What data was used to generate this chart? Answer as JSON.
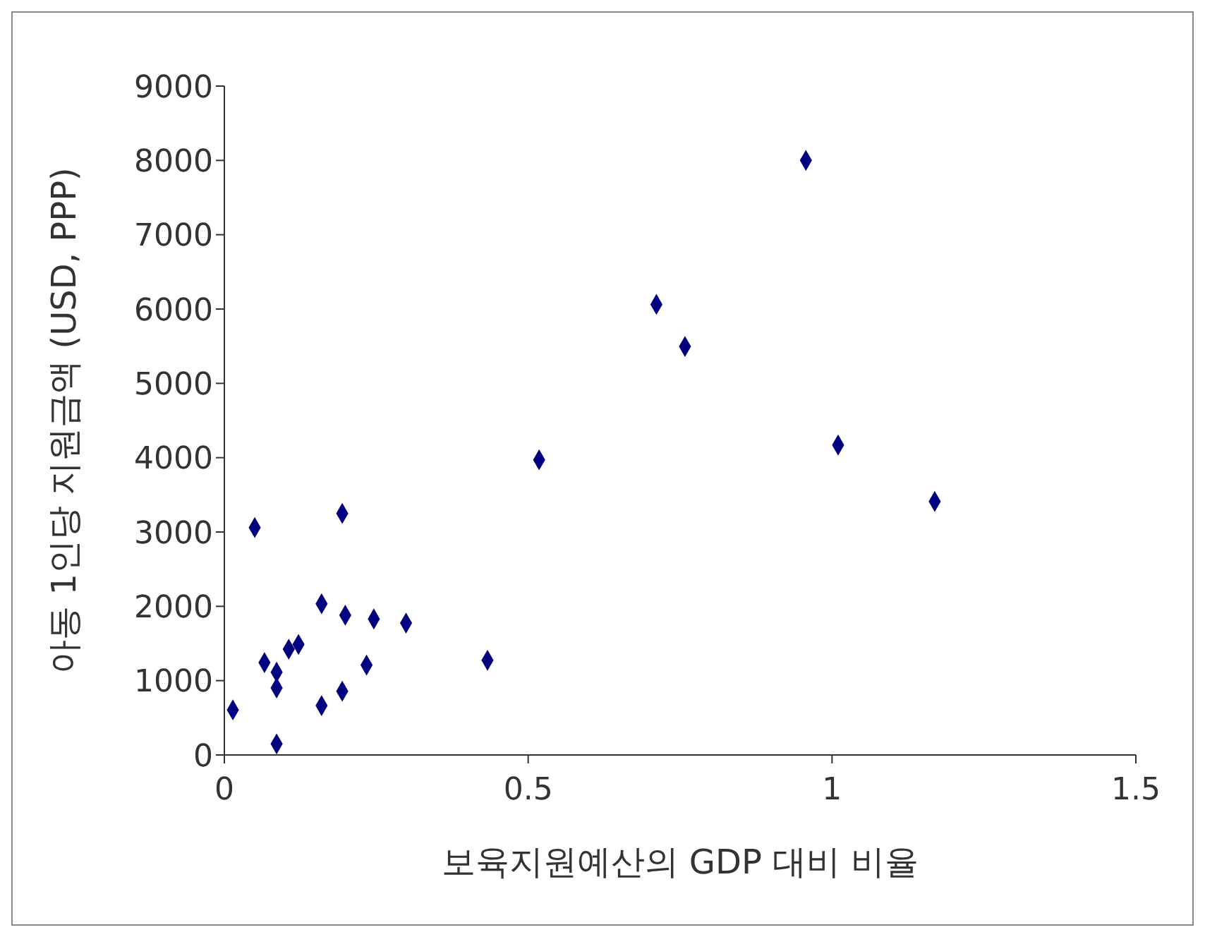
{
  "chart_data": {
    "type": "scatter",
    "xlabel": "보육지원예산의 GDP 대비 비율",
    "ylabel": "아동 1인당 지원금액 (USD, PPP)",
    "x": [
      0.05,
      0.194,
      0.16,
      0.199,
      0.246,
      0.299,
      0.122,
      0.106,
      0.066,
      0.086,
      0.234,
      0.433,
      0.086,
      0.194,
      0.16,
      0.014,
      0.086,
      0.957,
      0.711,
      0.758,
      0.518,
      1.01,
      1.169
    ],
    "values": [
      3060,
      3250,
      2035,
      1880,
      1830,
      1775,
      1487,
      1423,
      1243,
      1114,
      1210,
      1274,
      902,
      857,
      664,
      606,
      149,
      8000,
      6062,
      5496,
      3971,
      4170,
      3411
    ],
    "color": "#000080",
    "marker": "diamond",
    "xlim": [
      0,
      1.5
    ],
    "xticks": [
      0,
      0.5,
      1,
      1.5
    ],
    "ylim": [
      0,
      9000
    ],
    "yticks": [
      0,
      1000,
      2000,
      3000,
      4000,
      5000,
      6000,
      7000,
      8000,
      9000
    ],
    "grid": false,
    "legend": false
  }
}
